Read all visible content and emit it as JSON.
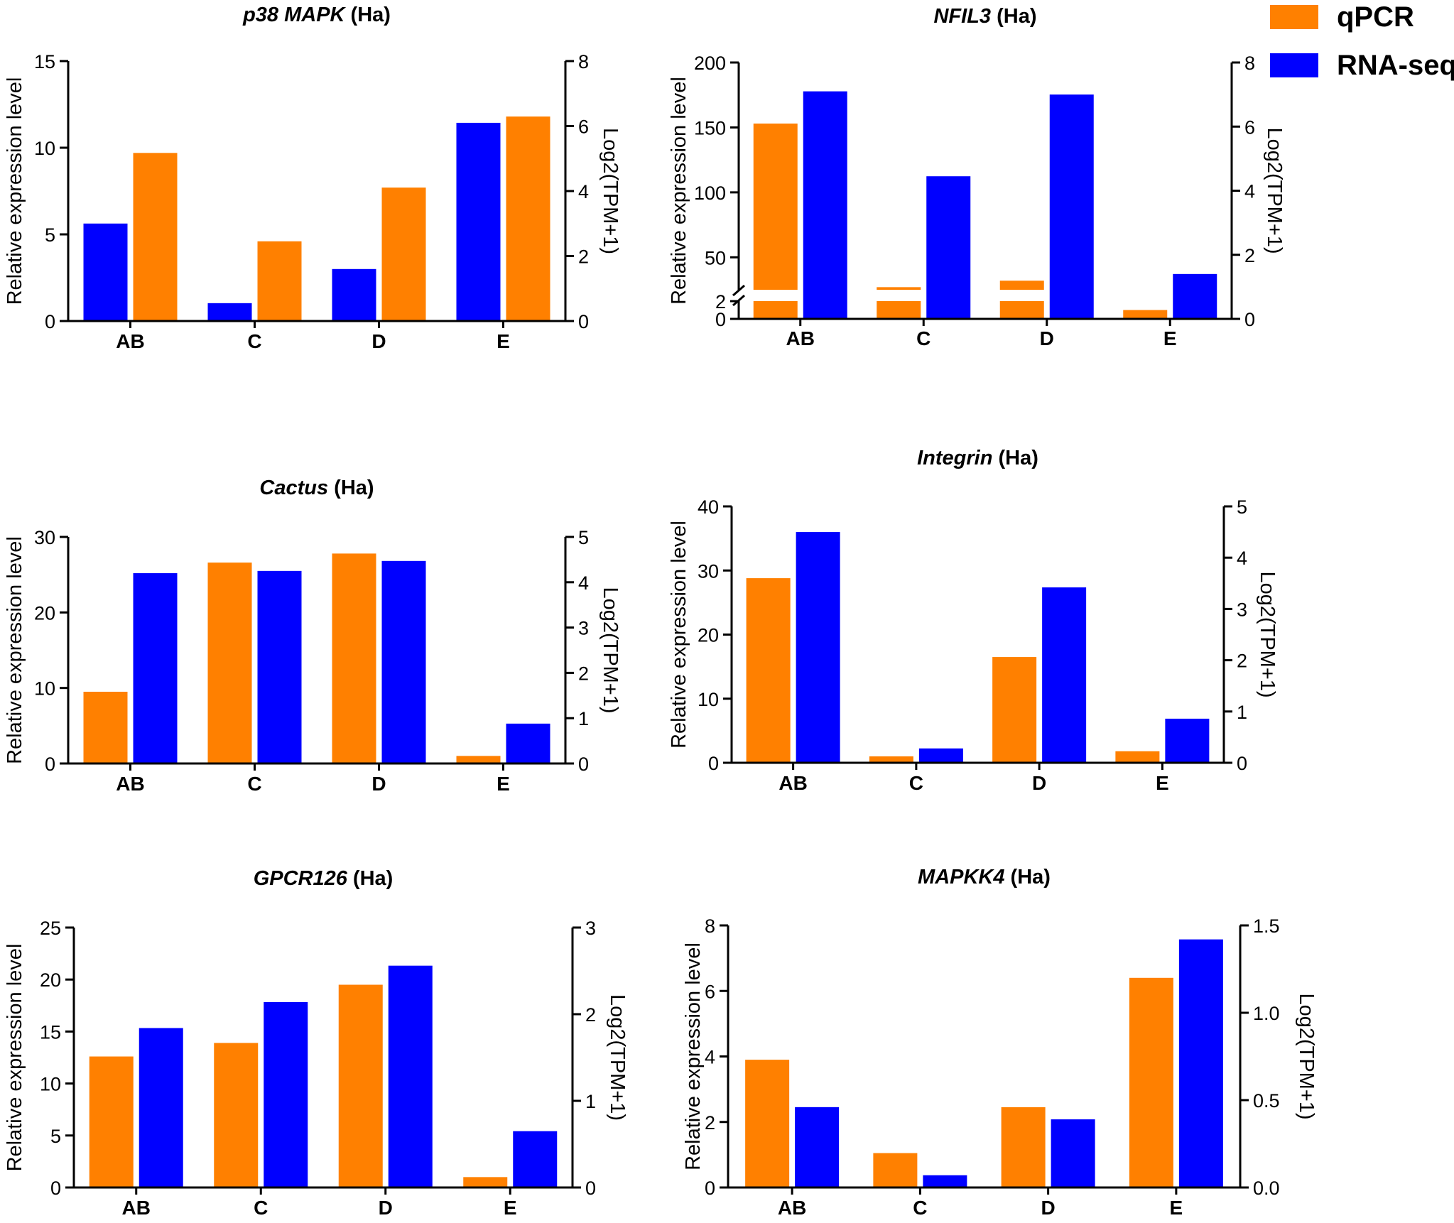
{
  "legend": {
    "items": [
      {
        "label": "qPCR",
        "color": "#FF8000"
      },
      {
        "label": "RNA-seq",
        "color": "#0000FF"
      }
    ]
  },
  "chart_data": [
    {
      "type": "bar",
      "title_gene": "p38 MAPK",
      "title_suffix": " (Ha)",
      "categories": [
        "AB",
        "C",
        "D",
        "E"
      ],
      "ylabel": "Relative expression level",
      "y2label": "Log2(TPM+1)",
      "ylim": [
        0,
        15
      ],
      "yticks": [
        0,
        5,
        10,
        15
      ],
      "y2lim": [
        0,
        8
      ],
      "y2ticks": [
        0,
        2,
        4,
        6,
        8
      ],
      "series_order": [
        "RNA-seq",
        "qPCR"
      ],
      "series": [
        {
          "name": "qPCR",
          "axis": "left",
          "values": [
            9.7,
            4.6,
            7.7,
            11.8
          ]
        },
        {
          "name": "RNA-seq",
          "axis": "right",
          "values": [
            3.0,
            0.55,
            1.6,
            6.1
          ]
        }
      ]
    },
    {
      "type": "bar",
      "title_gene": "NFIL3",
      "title_suffix": " (Ha)",
      "categories": [
        "AB",
        "C",
        "D",
        "E"
      ],
      "ylabel": "Relative expression level",
      "y2label": "Log2(TPM+1)",
      "ylim": [
        0,
        200
      ],
      "yticks": [
        0,
        2,
        50,
        100,
        150,
        200
      ],
      "axis_break": {
        "lower": [
          0,
          2
        ],
        "upper": [
          25,
          200
        ]
      },
      "y2lim": [
        0,
        8
      ],
      "y2ticks": [
        0,
        2,
        4,
        6,
        8
      ],
      "series_order": [
        "qPCR",
        "RNA-seq"
      ],
      "series": [
        {
          "name": "qPCR",
          "axis": "left",
          "values": [
            153,
            27,
            32,
            1.0
          ]
        },
        {
          "name": "RNA-seq",
          "axis": "right",
          "values": [
            7.1,
            4.45,
            7.0,
            1.4
          ]
        }
      ]
    },
    {
      "type": "bar",
      "title_gene": "Cactus",
      "title_suffix": " (Ha)",
      "categories": [
        "AB",
        "C",
        "D",
        "E"
      ],
      "ylabel": "Relative expression level",
      "y2label": "Log2(TPM+1)",
      "ylim": [
        0,
        30
      ],
      "yticks": [
        0,
        10,
        20,
        30
      ],
      "y2lim": [
        0,
        5
      ],
      "y2ticks": [
        0,
        1,
        2,
        3,
        4,
        5
      ],
      "series_order": [
        "qPCR",
        "RNA-seq"
      ],
      "series": [
        {
          "name": "qPCR",
          "axis": "left",
          "values": [
            9.5,
            26.6,
            27.8,
            1.0
          ]
        },
        {
          "name": "RNA-seq",
          "axis": "right",
          "values": [
            4.2,
            4.25,
            4.47,
            0.88
          ]
        }
      ]
    },
    {
      "type": "bar",
      "title_gene": "Integrin",
      "title_suffix": " (Ha)",
      "categories": [
        "AB",
        "C",
        "D",
        "E"
      ],
      "ylabel": "Relative expression level",
      "y2label": "Log2(TPM+1)",
      "ylim": [
        0,
        40
      ],
      "yticks": [
        0,
        10,
        20,
        30,
        40
      ],
      "y2lim": [
        0,
        5
      ],
      "y2ticks": [
        0,
        1,
        2,
        3,
        4,
        5
      ],
      "series_order": [
        "qPCR",
        "RNA-seq"
      ],
      "series": [
        {
          "name": "qPCR",
          "axis": "left",
          "values": [
            28.8,
            1.0,
            16.5,
            1.8
          ]
        },
        {
          "name": "RNA-seq",
          "axis": "right",
          "values": [
            4.5,
            0.28,
            3.42,
            0.86
          ]
        }
      ]
    },
    {
      "type": "bar",
      "title_gene": "GPCR126",
      "title_suffix": " (Ha)",
      "categories": [
        "AB",
        "C",
        "D",
        "E"
      ],
      "ylabel": "Relative expression level",
      "y2label": "Log2(TPM+1)",
      "ylim": [
        0,
        25
      ],
      "yticks": [
        0,
        5,
        10,
        15,
        20,
        25
      ],
      "y2lim": [
        0,
        3
      ],
      "y2ticks": [
        0,
        1,
        2,
        3
      ],
      "series_order": [
        "qPCR",
        "RNA-seq"
      ],
      "series": [
        {
          "name": "qPCR",
          "axis": "left",
          "values": [
            12.6,
            13.9,
            19.5,
            1.0
          ]
        },
        {
          "name": "RNA-seq",
          "axis": "right",
          "values": [
            1.84,
            2.14,
            2.56,
            0.65
          ]
        }
      ]
    },
    {
      "type": "bar",
      "title_gene": "MAPKK4",
      "title_suffix": " (Ha)",
      "categories": [
        "AB",
        "C",
        "D",
        "E"
      ],
      "ylabel": "Relative expression level",
      "y2label": "Log2(TPM+1)",
      "ylim": [
        0,
        8
      ],
      "yticks": [
        0,
        2,
        4,
        6,
        8
      ],
      "y2lim": [
        0,
        1.5
      ],
      "y2ticks": [
        "0.0",
        "0.5",
        "1.0",
        "1.5"
      ],
      "series_order": [
        "qPCR",
        "RNA-seq"
      ],
      "series": [
        {
          "name": "qPCR",
          "axis": "left",
          "values": [
            3.9,
            1.05,
            2.45,
            6.4
          ]
        },
        {
          "name": "RNA-seq",
          "axis": "right",
          "values": [
            0.46,
            0.07,
            0.39,
            1.42
          ]
        }
      ]
    }
  ]
}
